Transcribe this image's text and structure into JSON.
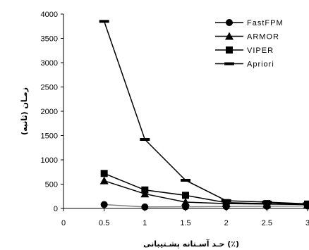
{
  "chart_data": {
    "type": "line",
    "title": "",
    "xlabel": "حـد آسـتانه پشـتيبانی (٪)",
    "ylabel": "زمـان (ثانيه)",
    "x": [
      0.5,
      1,
      1.5,
      2,
      2.5,
      3
    ],
    "xlim": [
      0,
      3
    ],
    "ylim": [
      0,
      4000
    ],
    "x_ticks": [
      "0",
      "0.5",
      "1",
      "1.5",
      "2",
      "2.5",
      "3"
    ],
    "y_ticks": [
      "0",
      "500",
      "1000",
      "1500",
      "2000",
      "2500",
      "3000",
      "3500",
      "4000"
    ],
    "grid": false,
    "legend_position": "top-right",
    "series": [
      {
        "name": "FastFPM",
        "marker": "circle",
        "color": "#000000",
        "line_color": "#808080",
        "values": [
          80,
          30,
          35,
          40,
          45,
          50
        ]
      },
      {
        "name": "ARMOR",
        "marker": "triangle",
        "color": "#000000",
        "line_color": "#000000",
        "values": [
          570,
          300,
          130,
          100,
          90,
          80
        ]
      },
      {
        "name": "VIPER",
        "marker": "square",
        "color": "#000000",
        "line_color": "#000000",
        "values": [
          720,
          380,
          270,
          120,
          100,
          90
        ]
      },
      {
        "name": "Apriori",
        "marker": "dash",
        "color": "#000000",
        "line_color": "#000000",
        "values": [
          3850,
          1420,
          580,
          160,
          130,
          95
        ]
      }
    ]
  }
}
